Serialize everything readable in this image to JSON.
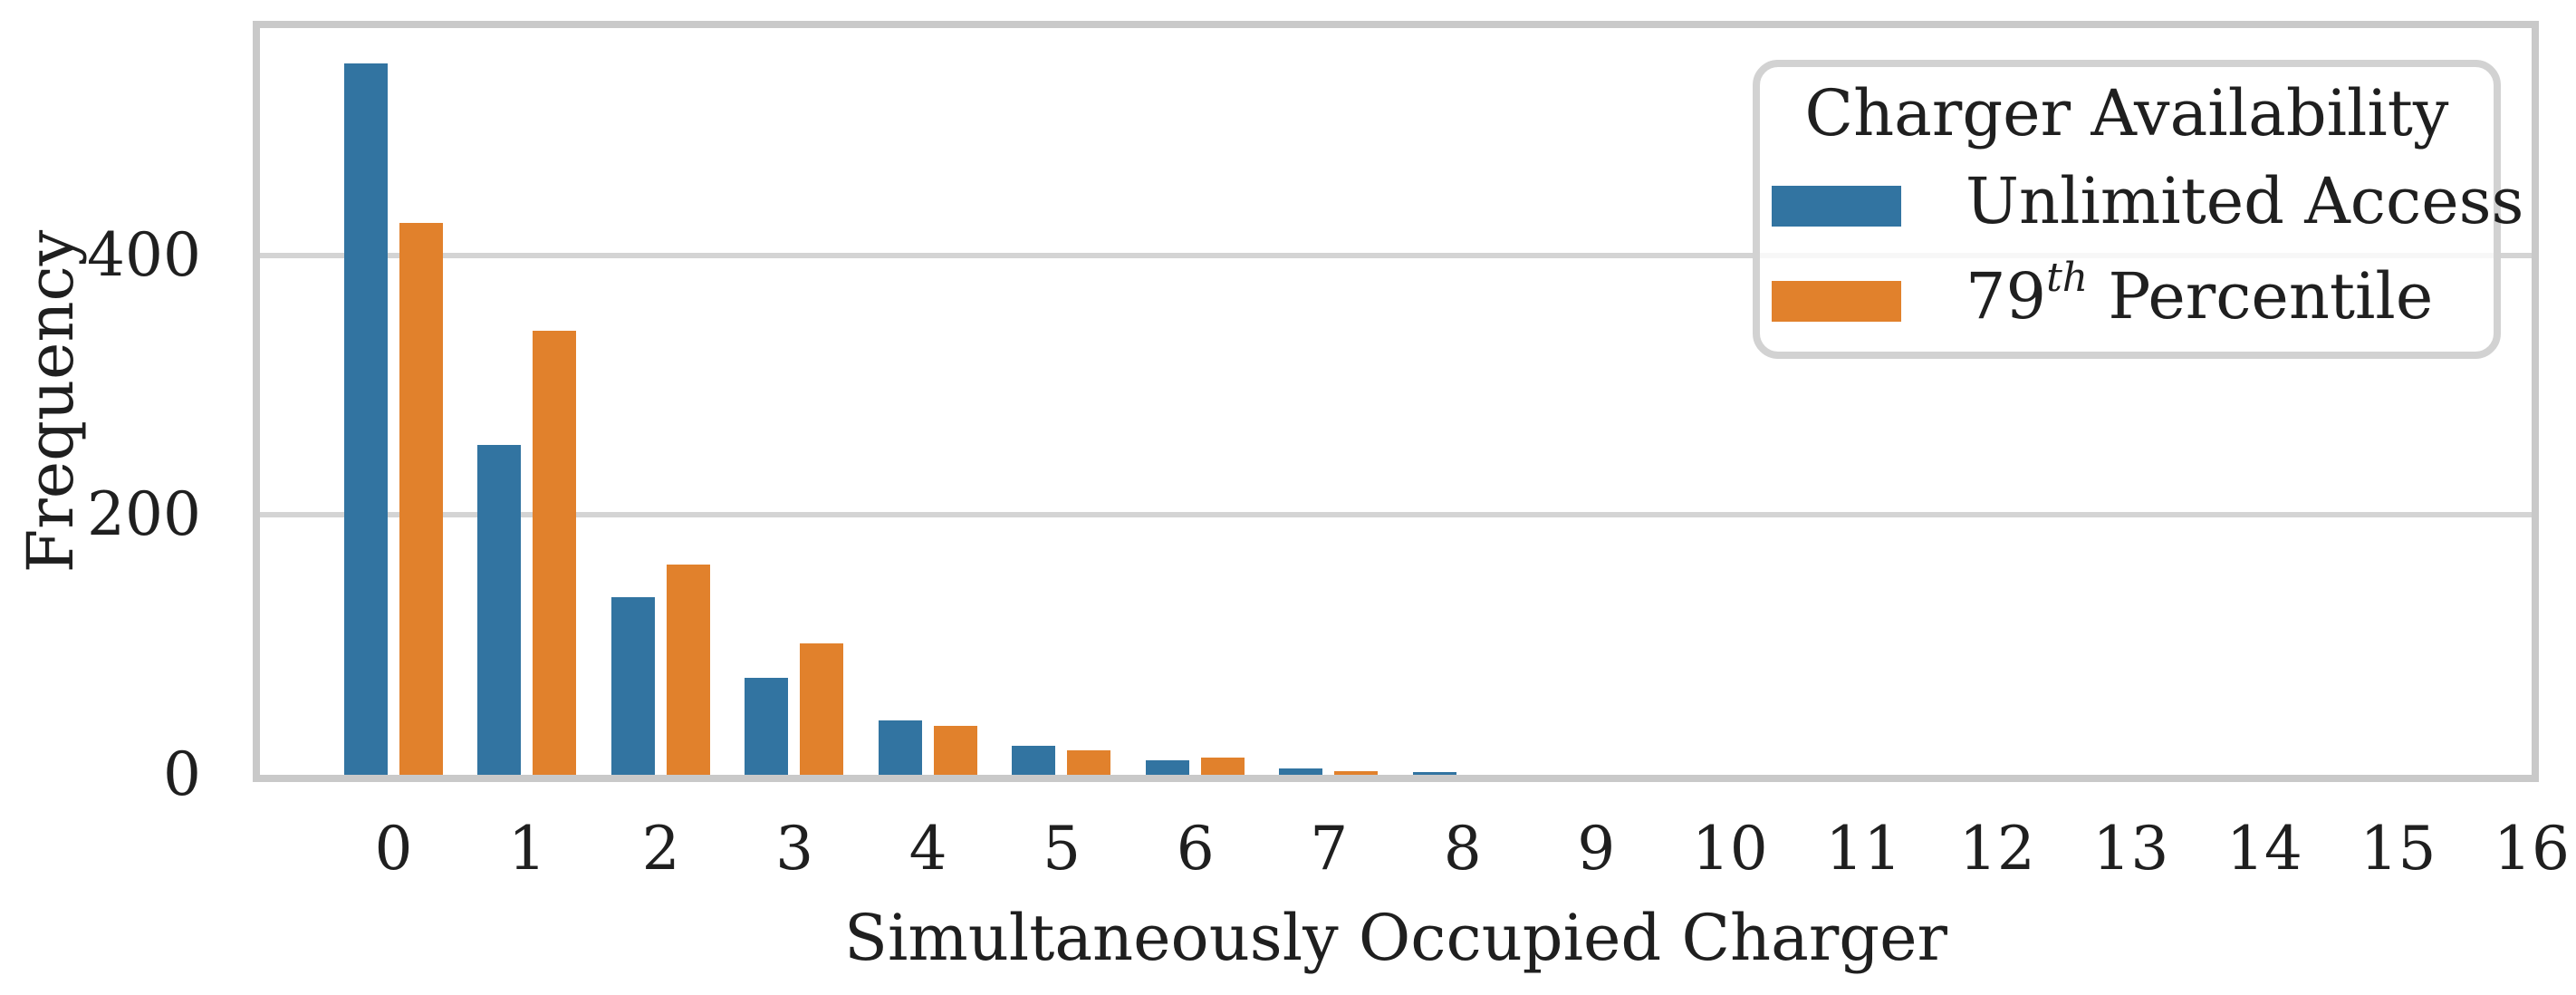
{
  "axes": {
    "xlabel": "Simultaneously Occupied Charger",
    "ylabel": "Frequency",
    "yticks": [
      {
        "value": 0,
        "label": "0"
      },
      {
        "value": 200,
        "label": "200"
      },
      {
        "value": 400,
        "label": "400"
      }
    ]
  },
  "legend": {
    "title": "Charger Availability",
    "items": [
      {
        "prefix": "Unlimited Access",
        "sup": "",
        "suffix": "",
        "color": "#3274A1"
      },
      {
        "prefix": "79",
        "sup": "th",
        "suffix": " Percentile",
        "color": "#E1812C"
      }
    ]
  },
  "colors": {
    "blue": "#3274A1",
    "orange": "#E1812C",
    "spine": "#c9c9c9",
    "grid": "#d4d4d4",
    "text": "#1f1f1f",
    "legend_border": "#d2d2d2"
  },
  "chart_data": {
    "type": "bar",
    "title": "",
    "xlabel": "Simultaneously Occupied Charger",
    "ylabel": "Frequency",
    "categories": [
      0,
      1,
      2,
      3,
      4,
      5,
      6,
      7,
      8,
      9,
      10,
      11,
      12,
      13,
      14,
      15,
      16
    ],
    "series": [
      {
        "name": "Unlimited Access",
        "color": "#3274A1",
        "values": [
          548,
          254,
          137,
          75,
          42,
          22,
          11,
          5,
          2,
          0,
          0,
          0,
          0,
          0,
          0,
          0,
          0
        ]
      },
      {
        "name": "79th Percentile",
        "color": "#E1812C",
        "values": [
          425,
          342,
          162,
          101,
          38,
          19,
          13,
          3,
          0,
          0,
          0,
          0,
          0,
          0,
          0,
          0,
          0
        ]
      }
    ],
    "ylim": [
      0,
      575
    ],
    "yticks": [
      0,
      200,
      400
    ],
    "grid": "horizontal",
    "legend_title": "Charger Availability",
    "legend_position": "upper right"
  }
}
